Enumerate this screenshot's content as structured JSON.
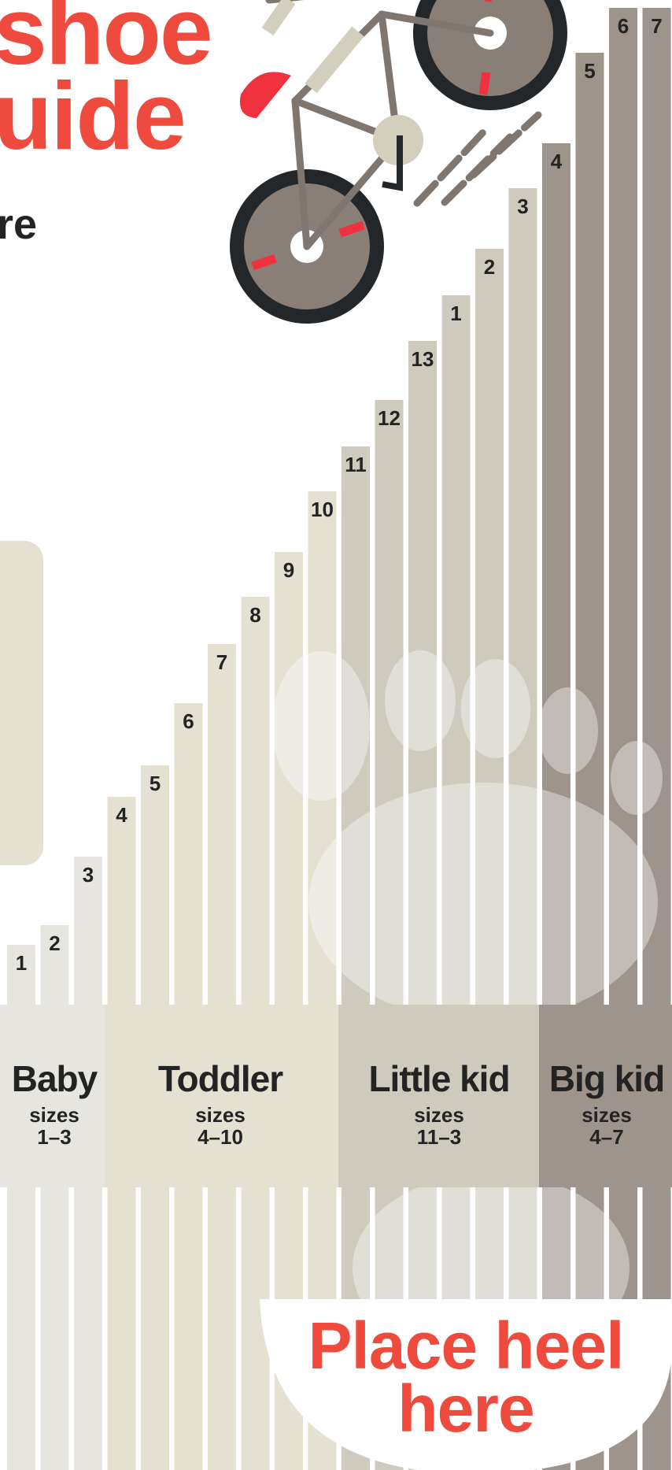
{
  "title_lines": [
    "shoe",
    "uide"
  ],
  "subtitle": "re",
  "bars": [
    {
      "label": "1",
      "group": "baby"
    },
    {
      "label": "2",
      "group": "baby"
    },
    {
      "label": "3",
      "group": "baby"
    },
    {
      "label": "4",
      "group": "toddler"
    },
    {
      "label": "5",
      "group": "toddler"
    },
    {
      "label": "6",
      "group": "toddler"
    },
    {
      "label": "7",
      "group": "toddler"
    },
    {
      "label": "8",
      "group": "toddler"
    },
    {
      "label": "9",
      "group": "toddler"
    },
    {
      "label": "10",
      "group": "toddler"
    },
    {
      "label": "11",
      "group": "little"
    },
    {
      "label": "12",
      "group": "little"
    },
    {
      "label": "13",
      "group": "little"
    },
    {
      "label": "1",
      "group": "little"
    },
    {
      "label": "2",
      "group": "little"
    },
    {
      "label": "3",
      "group": "little"
    },
    {
      "label": "4",
      "group": "big"
    },
    {
      "label": "5",
      "group": "big"
    },
    {
      "label": "6",
      "group": "big"
    },
    {
      "label": "7",
      "group": "big"
    }
  ],
  "categories": [
    {
      "name": "Baby",
      "sizes_label": "sizes",
      "range": "1–3"
    },
    {
      "name": "Toddler",
      "sizes_label": "sizes",
      "range": "4–10"
    },
    {
      "name": "Little kid",
      "sizes_label": "sizes",
      "range": "11–3"
    },
    {
      "name": "Big kid",
      "sizes_label": "sizes",
      "range": "4–7"
    }
  ],
  "heel_lines": [
    "Place heel",
    "here"
  ],
  "colors": {
    "accent": "#ee4a3d",
    "baby": "#e7e5df",
    "toddler": "#e4e1d3",
    "little": "#cecbbe",
    "big": "#9d948c",
    "bike_frame": "#7f7670",
    "tire": "#24272a",
    "hub": "#8a7f77",
    "text": "#232323"
  },
  "icons": [
    "bicycle-icon",
    "foot-silhouette-icon"
  ]
}
